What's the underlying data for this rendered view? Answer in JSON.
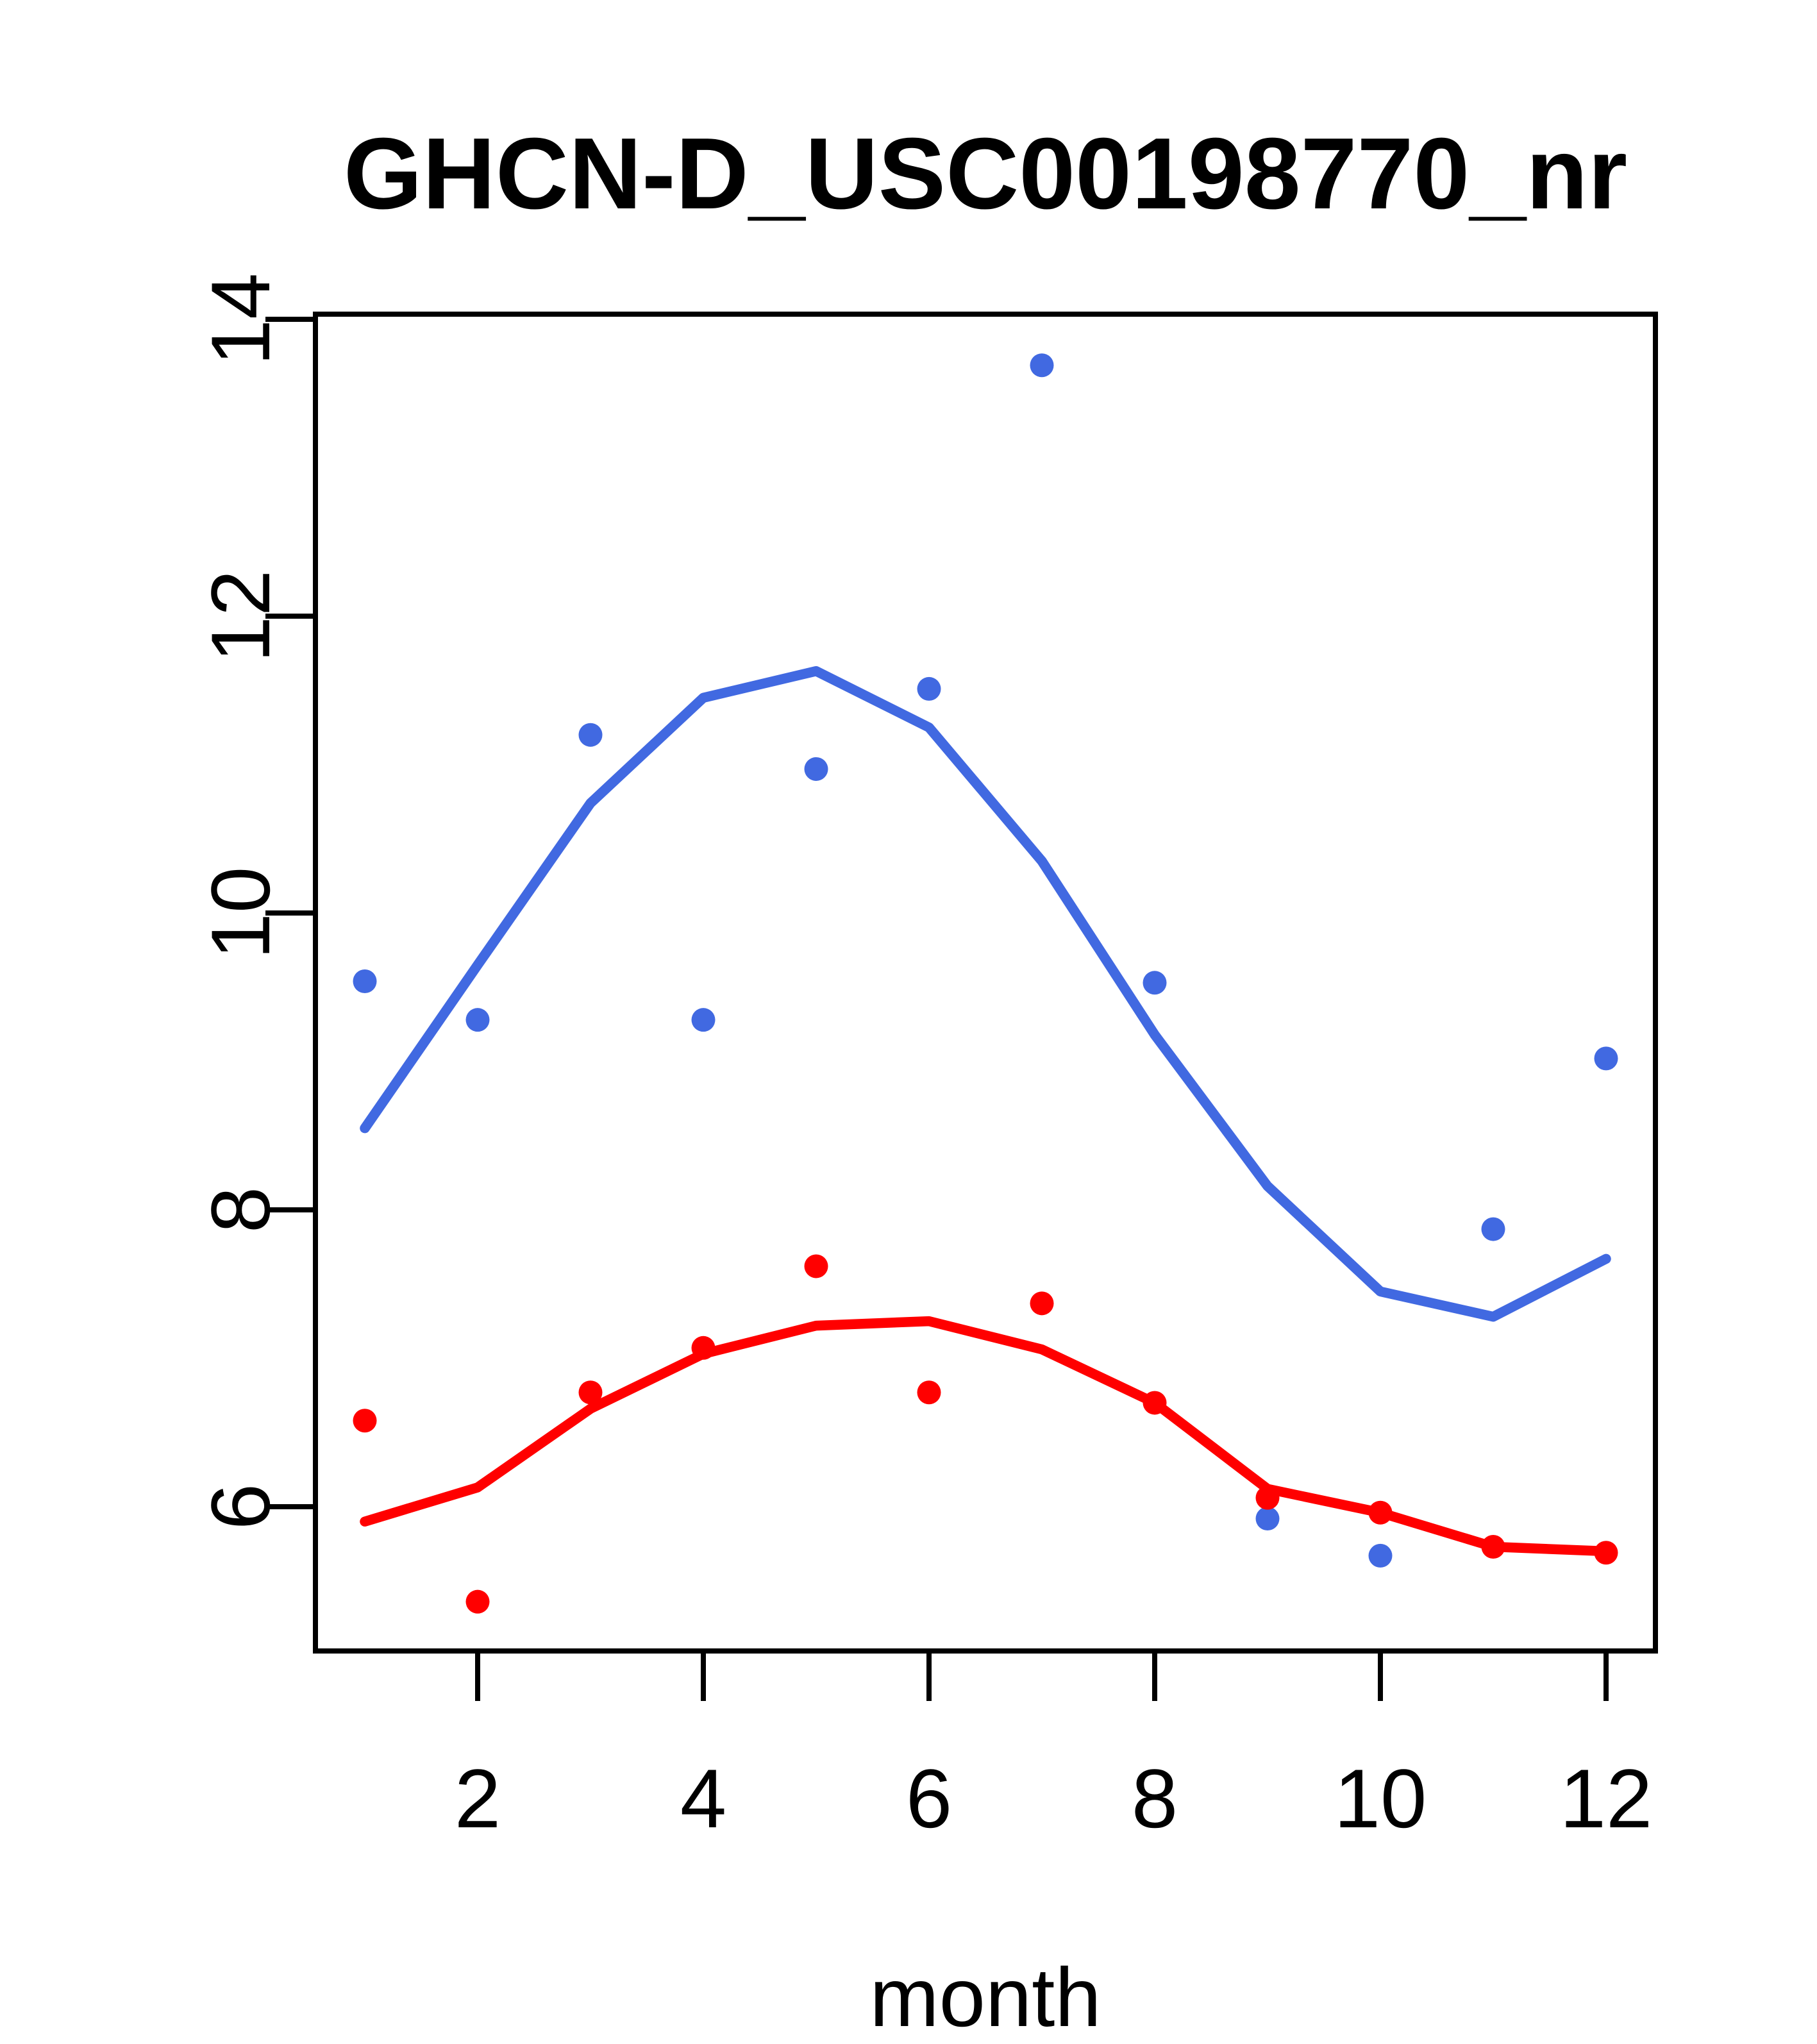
{
  "title": "GHCN-D_USC00198770_nr",
  "x_axis": {
    "label": "month",
    "ticks": [
      2,
      4,
      6,
      8,
      10,
      12
    ]
  },
  "y_axis": {
    "label": "",
    "ticks": [
      6,
      8,
      10,
      12,
      14
    ]
  },
  "colors": {
    "blue": "#4169E1",
    "red": "#FF0000",
    "axis": "#000000",
    "background": "#FFFFFF"
  },
  "chart_data": {
    "type": "scatter",
    "title": "GHCN-D_USC00198770_nr",
    "xlabel": "month",
    "ylabel": "",
    "x": [
      1,
      2,
      3,
      4,
      5,
      6,
      7,
      8,
      9,
      10,
      11,
      12
    ],
    "xlim": [
      0.56,
      12.44
    ],
    "ylim": [
      5.03,
      14.03
    ],
    "grid": false,
    "legend_position": null,
    "series": [
      {
        "name": "blue points",
        "kind": "scatter",
        "color": "#4169E1",
        "values": [
          9.54,
          9.28,
          11.2,
          9.28,
          10.97,
          11.51,
          13.69,
          9.53,
          5.92,
          5.67,
          7.87,
          9.02
        ]
      },
      {
        "name": "red points",
        "kind": "scatter",
        "color": "#FF0000",
        "values": [
          6.58,
          5.36,
          6.77,
          7.07,
          7.62,
          6.77,
          7.37,
          6.7,
          6.06,
          5.96,
          5.73,
          5.69
        ]
      },
      {
        "name": "blue lowess line",
        "kind": "line",
        "color": "#4169E1",
        "values": [
          8.55,
          9.65,
          10.74,
          11.45,
          11.63,
          11.25,
          10.35,
          9.18,
          8.16,
          7.45,
          7.28,
          7.67
        ]
      },
      {
        "name": "red lowess line",
        "kind": "line",
        "color": "#FF0000",
        "values": [
          5.9,
          6.13,
          6.66,
          7.03,
          7.22,
          7.25,
          7.06,
          6.7,
          6.12,
          5.96,
          5.73,
          5.7
        ]
      }
    ]
  }
}
